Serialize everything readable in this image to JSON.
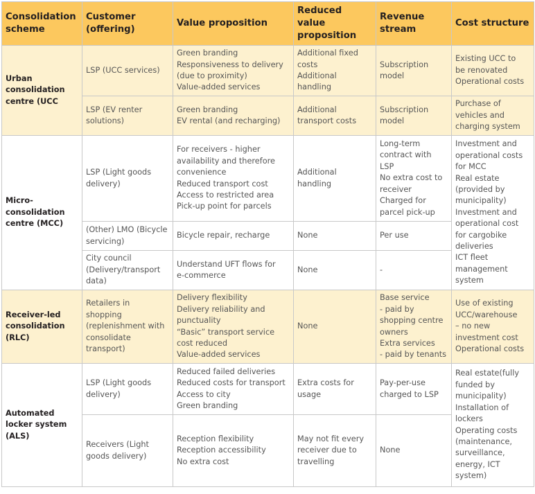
{
  "headers": [
    "Consolidation scheme",
    "Customer (offering)",
    "Value proposition",
    "Reduced value proposition",
    "Revenue stream",
    "Cost structure"
  ],
  "schemes": {
    "ucc": "Urban consolidation centre (UCC",
    "mcc": "Micro-consolidation centre (MCC)",
    "rlc": "Receiver-led consolidation (RLC)",
    "als": "Automated locker system (ALS)"
  },
  "ucc_rows": [
    {
      "customer": "LSP (UCC services)",
      "value": [
        "Green branding",
        "Responsiveness to delivery",
        "(due to proximity)",
        "Value-added services"
      ],
      "reduced": [
        "Additional fixed",
        "costs",
        "Additional",
        "handling"
      ],
      "revenue": [
        "Subscription",
        "model"
      ],
      "cost": [
        "Existing UCC to",
        "be renovated",
        "Operational costs"
      ]
    },
    {
      "customer": "LSP (EV renter solutions)",
      "value": [
        "Green branding",
        "EV rental (and recharging)"
      ],
      "reduced": [
        "Additional",
        "transport costs"
      ],
      "revenue": [
        "Subscription",
        "model"
      ],
      "cost": [
        "Purchase of",
        "vehicles and",
        "charging system"
      ]
    }
  ],
  "mcc_rows": [
    {
      "customer": "LSP (Light goods delivery)",
      "value": [
        "For receivers - higher",
        "availability and therefore",
        "convenience",
        "Reduced transport cost",
        "Access to restricted area",
        "Pick-up point for parcels"
      ],
      "reduced": [
        "Additional",
        "handling"
      ],
      "revenue": [
        "Long-term",
        "contract with",
        "LSP",
        "No extra cost to",
        "receiver",
        "Charged for",
        "parcel pick-up"
      ]
    },
    {
      "customer": "(Other) LMO (Bicycle servicing)",
      "value": [
        "Bicycle repair, recharge"
      ],
      "reduced": [
        "None"
      ],
      "revenue": [
        "Per use"
      ]
    },
    {
      "customer": "City council (Delivery/transport data)",
      "value": [
        "Understand UFT flows for",
        "e-commerce"
      ],
      "reduced": [
        "None"
      ],
      "revenue": [
        "-"
      ]
    }
  ],
  "mcc_cost": [
    "Investment and",
    "operational costs",
    "for MCC",
    "Real estate",
    "(provided by",
    "municipality)",
    "Investment and",
    "operational cost",
    "for cargobike",
    "deliveries",
    "ICT fleet",
    "management",
    "system"
  ],
  "rlc_row": {
    "customer": [
      "Retailers in",
      "shopping",
      "(replenishment with",
      "consolidate",
      "transport)"
    ],
    "value": [
      "Delivery flexibility",
      "Delivery reliability and",
      "punctuality",
      "“Basic” transport service",
      "cost reduced",
      "Value-added services"
    ],
    "reduced": [
      "None"
    ],
    "revenue": [
      "Base service",
      "- paid by",
      "shopping centre",
      "owners",
      "Extra services",
      "- paid by tenants"
    ],
    "cost": [
      "Use of existing",
      "UCC/warehouse",
      "– no new",
      "investment cost",
      "Operational costs"
    ]
  },
  "als_rows": [
    {
      "customer": "LSP (Light goods delivery)",
      "value": [
        "Reduced failed deliveries",
        "Reduced costs for transport",
        "Access to city",
        "Green branding"
      ],
      "reduced": [
        "Extra costs for",
        "usage"
      ],
      "revenue": [
        "Pay-per-use",
        "charged to LSP"
      ]
    },
    {
      "customer": "Receivers (Light goods delivery)",
      "value": [
        "Reception flexibility",
        "Reception accessibility",
        "No extra cost"
      ],
      "reduced": [
        "May not fit every",
        "receiver due to",
        "travelling"
      ],
      "revenue": [
        "None"
      ]
    }
  ],
  "als_cost": [
    "Real estate(fully",
    "funded by",
    "municipality)",
    "Installation of",
    "lockers",
    "Operating costs",
    "(maintenance,",
    "surveillance,",
    "energy, ICT",
    "system)"
  ],
  "colors": {
    "header_bg": "#fcc85e",
    "highlight_bg": "#fdf1cf",
    "border": "#c8c8c8",
    "text": "#555555",
    "heading_text": "#231f20"
  }
}
